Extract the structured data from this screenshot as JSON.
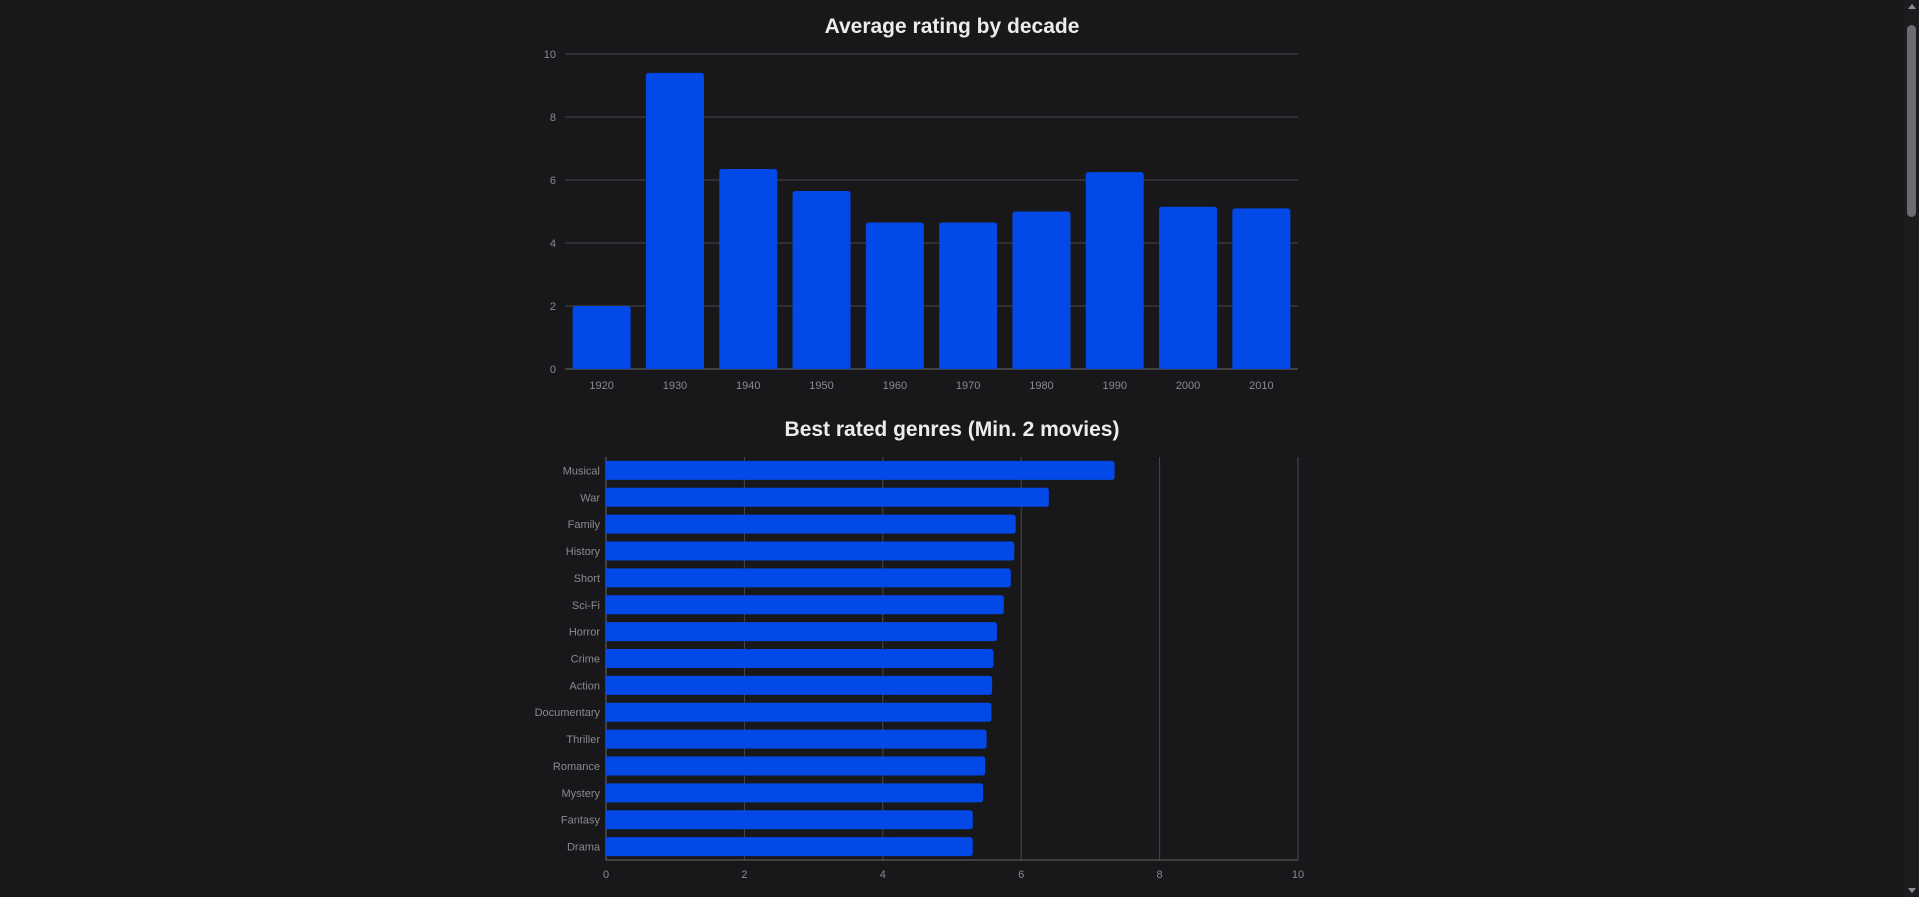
{
  "colors": {
    "background": "#18181b",
    "bar": "#0349e7",
    "grid": "#48484c",
    "axis": "#67676b",
    "tick_text": "#8a8a8f",
    "title_text": "#ececec"
  },
  "chart_data": [
    {
      "type": "bar",
      "orientation": "vertical",
      "title": "Average rating by decade",
      "categories": [
        "1920",
        "1930",
        "1940",
        "1950",
        "1960",
        "1970",
        "1980",
        "1990",
        "2000",
        "2010"
      ],
      "values": [
        2.0,
        9.4,
        6.35,
        5.65,
        4.65,
        4.65,
        5.0,
        6.25,
        5.15,
        5.1
      ],
      "ylim": [
        0,
        10
      ],
      "yticks": [
        "0",
        "2",
        "4",
        "6",
        "8",
        "10"
      ],
      "grid": true,
      "xlabel": "",
      "ylabel": ""
    },
    {
      "type": "bar",
      "orientation": "horizontal",
      "title": "Best rated genres (Min. 2 movies)",
      "categories": [
        "Musical",
        "War",
        "Family",
        "History",
        "Short",
        "Sci-Fi",
        "Horror",
        "Crime",
        "Action",
        "Documentary",
        "Thriller",
        "Romance",
        "Mystery",
        "Fantasy",
        "Drama"
      ],
      "values": [
        7.35,
        6.4,
        5.92,
        5.9,
        5.85,
        5.75,
        5.65,
        5.6,
        5.58,
        5.57,
        5.5,
        5.48,
        5.45,
        5.3,
        5.3
      ],
      "xlim": [
        0,
        10
      ],
      "xticks": [
        "0",
        "2",
        "4",
        "6",
        "8",
        "10"
      ],
      "grid": true,
      "xlabel": "",
      "ylabel": ""
    }
  ]
}
